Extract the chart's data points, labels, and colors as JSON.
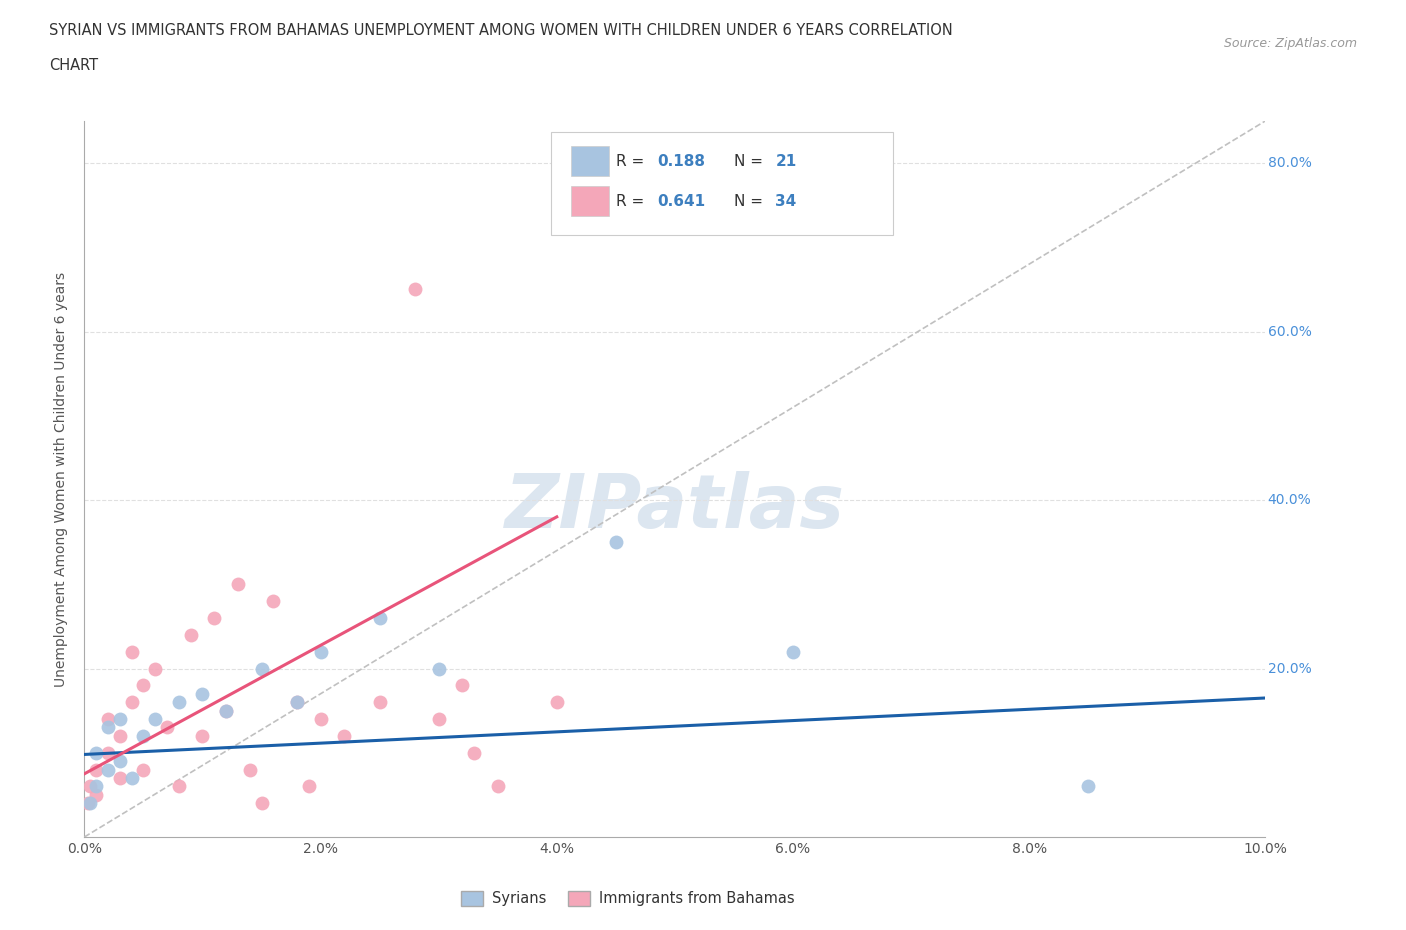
{
  "title_line1": "SYRIAN VS IMMIGRANTS FROM BAHAMAS UNEMPLOYMENT AMONG WOMEN WITH CHILDREN UNDER 6 YEARS CORRELATION",
  "title_line2": "CHART",
  "source_text": "Source: ZipAtlas.com",
  "ylabel": "Unemployment Among Women with Children Under 6 years",
  "xlim": [
    0.0,
    0.1
  ],
  "ylim": [
    0.0,
    0.85
  ],
  "xtick_labels": [
    "0.0%",
    "2.0%",
    "4.0%",
    "6.0%",
    "8.0%",
    "10.0%"
  ],
  "xtick_vals": [
    0.0,
    0.02,
    0.04,
    0.06,
    0.08,
    0.1
  ],
  "ytick_labels": [
    "20.0%",
    "40.0%",
    "60.0%",
    "80.0%"
  ],
  "ytick_vals": [
    0.2,
    0.4,
    0.6,
    0.8
  ],
  "syrian_R": 0.188,
  "syrian_N": 21,
  "bahamas_R": 0.641,
  "bahamas_N": 34,
  "syrian_color": "#a8c4e0",
  "bahamas_color": "#f4a7b9",
  "syrian_line_color": "#1a5fa8",
  "bahamas_line_color": "#e8547a",
  "trend_line_color": "#c0c0c0",
  "background_color": "#ffffff",
  "watermark_text": "ZIPatlas",
  "watermark_color": "#dce6f0",
  "ytick_color": "#4a90d9",
  "legend_R_color": "#3d7fbf",
  "legend_N_color": "#3d7fbf",
  "syrians_scatter_x": [
    0.0005,
    0.001,
    0.001,
    0.002,
    0.002,
    0.003,
    0.003,
    0.004,
    0.005,
    0.006,
    0.008,
    0.01,
    0.012,
    0.015,
    0.018,
    0.02,
    0.025,
    0.03,
    0.045,
    0.06,
    0.085
  ],
  "syrians_scatter_y": [
    0.04,
    0.06,
    0.1,
    0.08,
    0.13,
    0.09,
    0.14,
    0.07,
    0.12,
    0.14,
    0.16,
    0.17,
    0.15,
    0.2,
    0.16,
    0.22,
    0.26,
    0.2,
    0.35,
    0.22,
    0.06
  ],
  "bahamas_scatter_x": [
    0.0003,
    0.0005,
    0.001,
    0.001,
    0.002,
    0.002,
    0.003,
    0.003,
    0.004,
    0.004,
    0.005,
    0.005,
    0.006,
    0.007,
    0.008,
    0.009,
    0.01,
    0.011,
    0.012,
    0.013,
    0.014,
    0.015,
    0.016,
    0.018,
    0.019,
    0.02,
    0.022,
    0.025,
    0.028,
    0.03,
    0.032,
    0.033,
    0.035,
    0.04
  ],
  "bahamas_scatter_y": [
    0.04,
    0.06,
    0.05,
    0.08,
    0.1,
    0.14,
    0.07,
    0.12,
    0.16,
    0.22,
    0.08,
    0.18,
    0.2,
    0.13,
    0.06,
    0.24,
    0.12,
    0.26,
    0.15,
    0.3,
    0.08,
    0.04,
    0.28,
    0.16,
    0.06,
    0.14,
    0.12,
    0.16,
    0.65,
    0.14,
    0.18,
    0.1,
    0.06,
    0.16
  ],
  "legend_bottom_labels": [
    "Syrians",
    "Immigrants from Bahamas"
  ],
  "legend_bottom_colors": [
    "#a8c4e0",
    "#f4a7b9"
  ],
  "syrian_trend_x0": 0.0,
  "syrian_trend_y0": 0.098,
  "syrian_trend_x1": 0.1,
  "syrian_trend_y1": 0.165,
  "bahamas_trend_x0": 0.0,
  "bahamas_trend_y0": 0.075,
  "bahamas_trend_x1": 0.04,
  "bahamas_trend_y1": 0.38
}
